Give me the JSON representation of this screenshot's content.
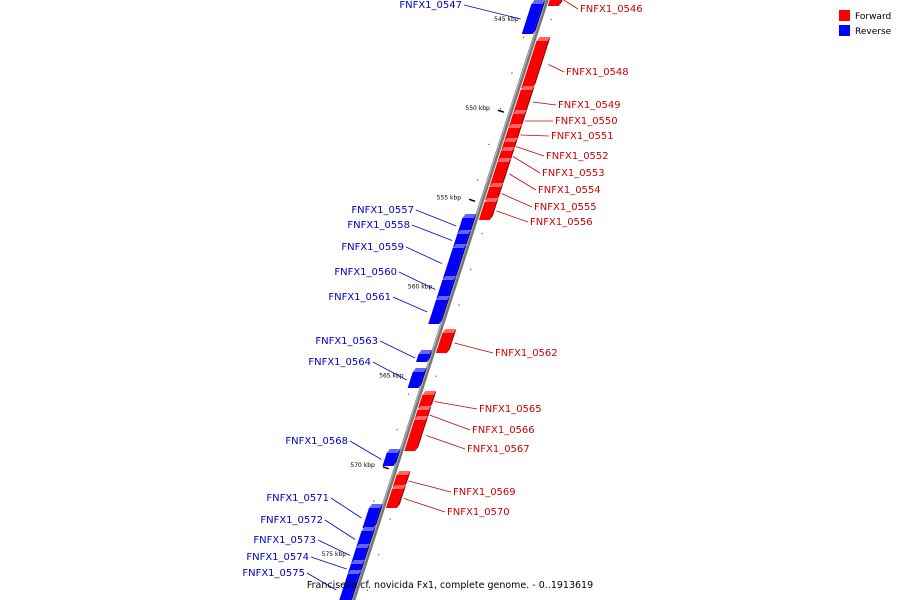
{
  "caption": "Francisella cf. novicida Fx1, complete genome. - 0..1913619",
  "legend": [
    {
      "label": "Forward",
      "color": "#ff0000"
    },
    {
      "label": "Reverse",
      "color": "#0000ff"
    }
  ],
  "colors": {
    "forward": "#ff0000",
    "reverse": "#0000ff",
    "forward_label": "#cc0000",
    "reverse_label": "#0000cc",
    "backbone": "#777777"
  },
  "ticks": [
    {
      "label": "545 kbp",
      "kbp": 545
    },
    {
      "label": "550 kbp",
      "kbp": 550
    },
    {
      "label": "555 kbp",
      "kbp": 555
    },
    {
      "label": "560 kbp",
      "kbp": 560
    },
    {
      "label": "565 kbp",
      "kbp": 565
    },
    {
      "label": "570 kbp",
      "kbp": 570
    },
    {
      "label": "575 kbp",
      "kbp": 575
    }
  ],
  "genes": [
    {
      "id": "FNFX1_0546",
      "strand": "forward"
    },
    {
      "id": "FNFX1_0547",
      "strand": "reverse"
    },
    {
      "id": "FNFX1_0548",
      "strand": "forward"
    },
    {
      "id": "FNFX1_0549",
      "strand": "forward"
    },
    {
      "id": "FNFX1_0550",
      "strand": "forward"
    },
    {
      "id": "FNFX1_0551",
      "strand": "forward"
    },
    {
      "id": "FNFX1_0552",
      "strand": "forward"
    },
    {
      "id": "FNFX1_0553",
      "strand": "forward"
    },
    {
      "id": "FNFX1_0554",
      "strand": "forward"
    },
    {
      "id": "FNFX1_0555",
      "strand": "forward"
    },
    {
      "id": "FNFX1_0556",
      "strand": "forward"
    },
    {
      "id": "FNFX1_0557",
      "strand": "reverse"
    },
    {
      "id": "FNFX1_0558",
      "strand": "reverse"
    },
    {
      "id": "FNFX1_0559",
      "strand": "reverse"
    },
    {
      "id": "FNFX1_0560",
      "strand": "reverse"
    },
    {
      "id": "FNFX1_0561",
      "strand": "reverse"
    },
    {
      "id": "FNFX1_0562",
      "strand": "forward"
    },
    {
      "id": "FNFX1_0563",
      "strand": "reverse"
    },
    {
      "id": "FNFX1_0564",
      "strand": "reverse"
    },
    {
      "id": "FNFX1_0565",
      "strand": "forward"
    },
    {
      "id": "FNFX1_0566",
      "strand": "forward"
    },
    {
      "id": "FNFX1_0567",
      "strand": "forward"
    },
    {
      "id": "FNFX1_0568",
      "strand": "reverse"
    },
    {
      "id": "FNFX1_0569",
      "strand": "forward"
    },
    {
      "id": "FNFX1_0570",
      "strand": "forward"
    },
    {
      "id": "FNFX1_0571",
      "strand": "reverse"
    },
    {
      "id": "FNFX1_0572",
      "strand": "reverse"
    },
    {
      "id": "FNFX1_0573",
      "strand": "reverse"
    },
    {
      "id": "FNFX1_0574",
      "strand": "reverse"
    },
    {
      "id": "FNFX1_0575",
      "strand": "reverse"
    }
  ]
}
